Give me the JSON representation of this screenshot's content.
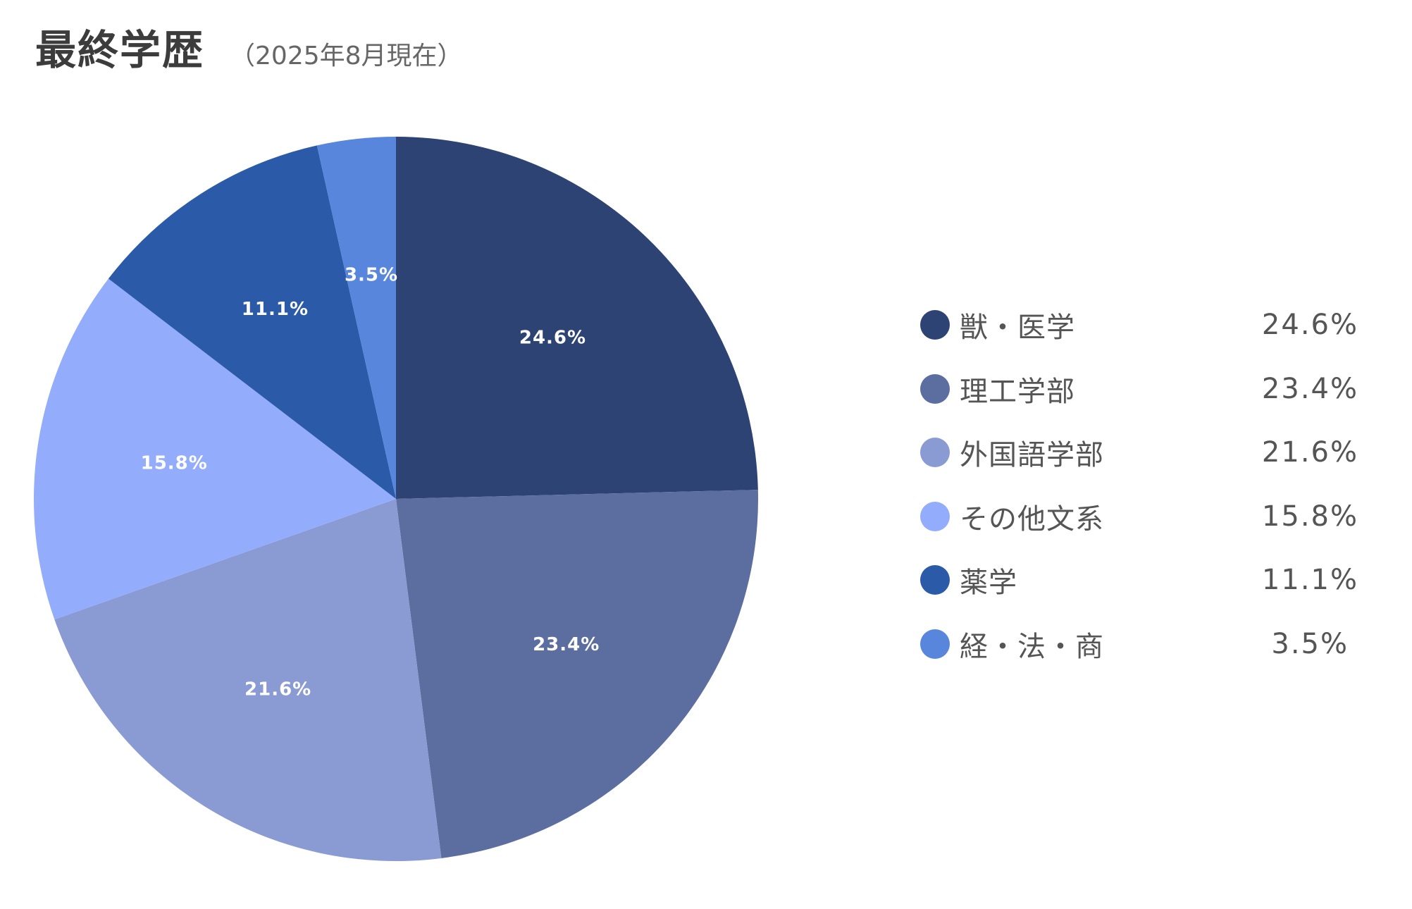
{
  "title": "最終学歴",
  "subtitle": "（2025年8月現在）",
  "chart_data": {
    "type": "pie",
    "title": "最終学歴",
    "subtitle": "（2025年8月現在）",
    "legend_position": "right",
    "slices": [
      {
        "name": "獣・医学",
        "value": 24.6,
        "label": "24.6%",
        "color": "#2d4373"
      },
      {
        "name": "理工学部",
        "value": 23.4,
        "label": "23.4%",
        "color": "#5c6d9f"
      },
      {
        "name": "外国語学部",
        "value": 21.6,
        "label": "21.6%",
        "color": "#8a9bd4"
      },
      {
        "name": "その他文系",
        "value": 15.8,
        "label": "15.8%",
        "color": "#93adfc"
      },
      {
        "name": "薬学",
        "value": 11.1,
        "label": "11.1%",
        "color": "#2b5ba8"
      },
      {
        "name": "経・法・商",
        "value": 3.5,
        "label": "3.5%",
        "color": "#5886dc"
      }
    ]
  }
}
